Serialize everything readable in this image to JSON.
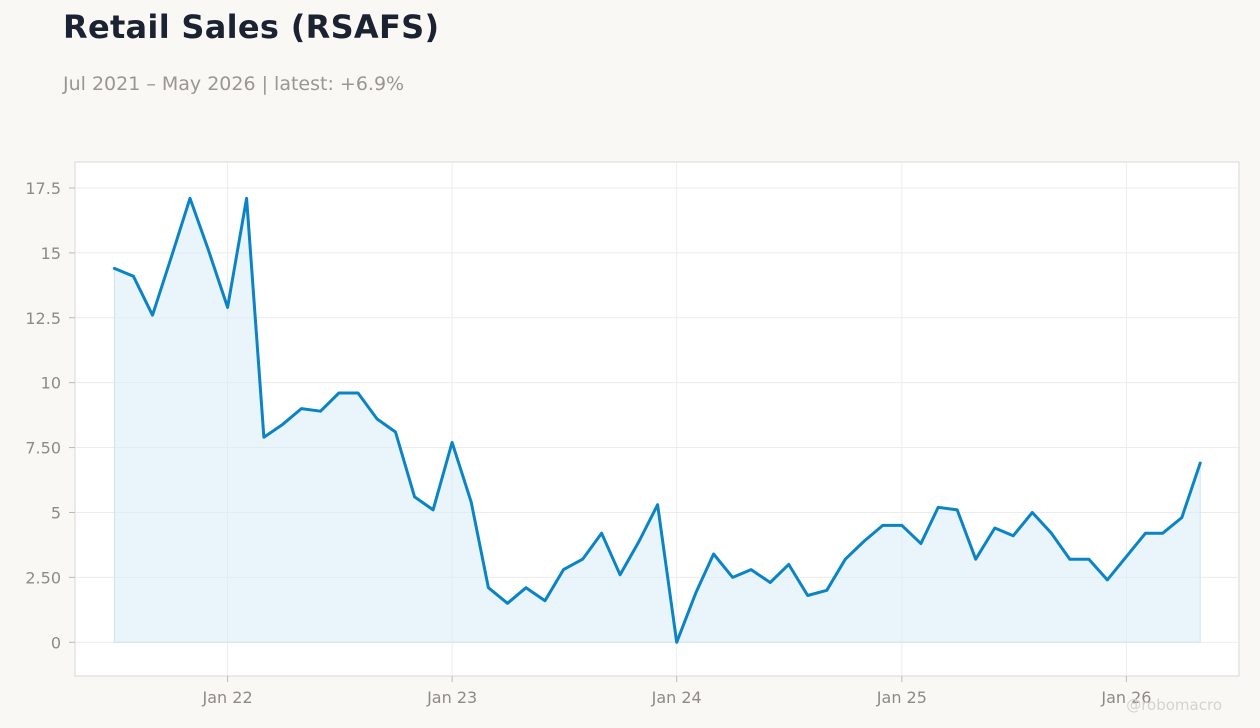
{
  "header": {
    "title": "Retail Sales (RSAFS)",
    "subtitle": "Jul 2021 – May 2026 | latest: +6.9%"
  },
  "watermark": "@robomacro",
  "colors": {
    "line": "#0a84c6",
    "fill": "#dcedf9",
    "background": "#f9f8f5",
    "plot_background": "#ffffff",
    "grid": "#ececea",
    "frame": "#d9d7d2"
  },
  "chart_data": {
    "type": "area",
    "title": "Retail Sales (RSAFS)",
    "xlabel": "",
    "ylabel": "",
    "ylim": [
      -1.3,
      18.5
    ],
    "xlim": [
      "2021-04-28",
      "2026-07-03"
    ],
    "grid": true,
    "yticks": [
      0,
      2.5,
      5,
      7.5,
      10,
      12.5,
      15,
      17.5
    ],
    "ytick_labels": [
      "0",
      "2.50",
      "5",
      "7.50",
      "10",
      "12.5",
      "15",
      "17.5"
    ],
    "xticks": [
      "2022-01-01",
      "2023-01-01",
      "2024-01-01",
      "2025-01-01",
      "2026-01-01"
    ],
    "xtick_labels": [
      "Jan 22",
      "Jan 23",
      "Jan 24",
      "Jan 25",
      "Jan 26"
    ],
    "series": [
      {
        "x": [
          "2021-07-01",
          "2021-08-01",
          "2021-09-01",
          "2021-10-01",
          "2021-11-01",
          "2021-12-01",
          "2022-01-01",
          "2022-02-01",
          "2022-03-01",
          "2022-04-01",
          "2022-05-01",
          "2022-06-01",
          "2022-07-01",
          "2022-08-01",
          "2022-09-01",
          "2022-10-01",
          "2022-11-01",
          "2022-12-01",
          "2023-01-01",
          "2023-02-01",
          "2023-03-01",
          "2023-04-01",
          "2023-05-01",
          "2023-06-01",
          "2023-07-01",
          "2023-08-01",
          "2023-09-01",
          "2023-10-01",
          "2023-11-01",
          "2023-12-01",
          "2024-01-01",
          "2024-02-01",
          "2024-03-01",
          "2024-04-01",
          "2024-05-01",
          "2024-06-01",
          "2024-07-01",
          "2024-08-01",
          "2024-09-01",
          "2024-10-01",
          "2024-11-01",
          "2024-12-01",
          "2025-01-01",
          "2025-02-01",
          "2025-03-01",
          "2025-04-01",
          "2025-05-01",
          "2025-06-01",
          "2025-07-01",
          "2025-08-01",
          "2025-09-01",
          "2025-10-01",
          "2025-11-01",
          "2025-12-01",
          "2026-01-01",
          "2026-02-01",
          "2026-03-01",
          "2026-04-01",
          "2026-05-01"
        ],
        "values": [
          14.4,
          14.1,
          12.6,
          14.8,
          17.1,
          15.1,
          12.9,
          17.1,
          7.9,
          8.4,
          9.0,
          8.9,
          9.6,
          9.6,
          8.6,
          8.1,
          5.6,
          5.1,
          7.7,
          5.4,
          2.1,
          1.5,
          2.1,
          1.6,
          2.8,
          3.2,
          4.2,
          2.6,
          3.9,
          5.3,
          0.0,
          1.9,
          3.4,
          2.5,
          2.8,
          2.3,
          3.0,
          1.8,
          2.0,
          3.2,
          3.9,
          4.5,
          4.5,
          3.8,
          5.2,
          5.1,
          3.2,
          4.4,
          4.1,
          5.0,
          4.2,
          3.2,
          3.2,
          2.4,
          3.3,
          4.2,
          4.2,
          4.8,
          6.9
        ]
      }
    ]
  }
}
